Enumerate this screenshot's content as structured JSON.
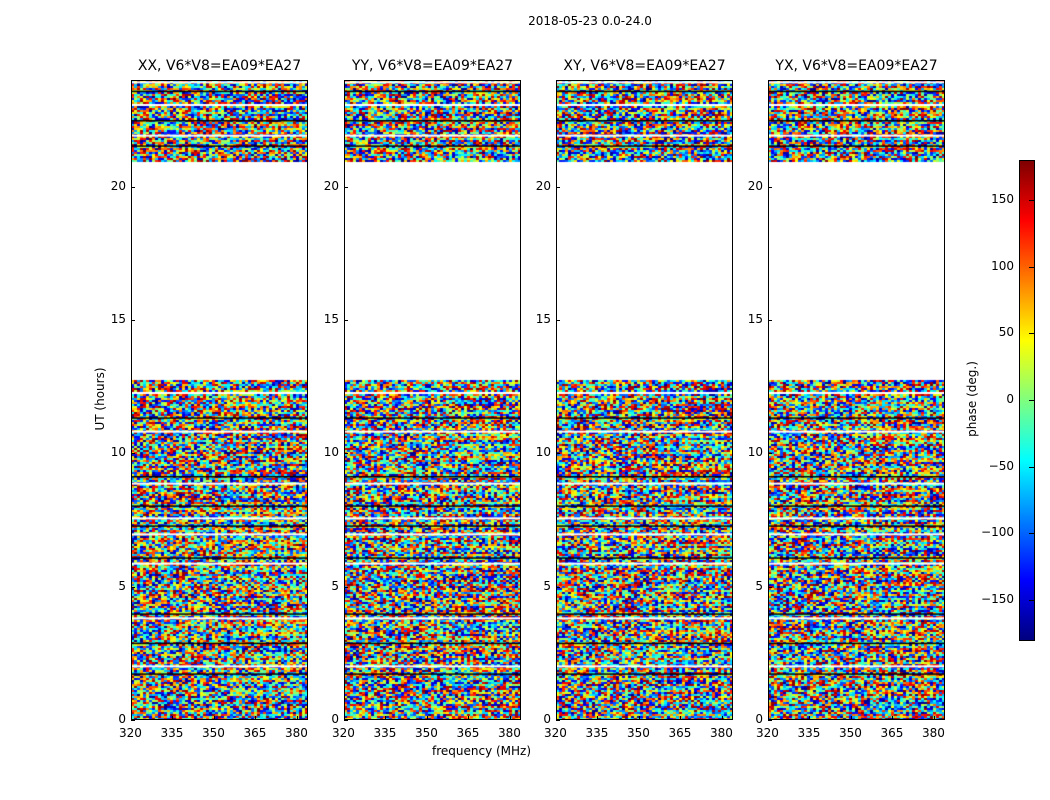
{
  "chart_data": {
    "type": "heatmap",
    "title": "2018-05-23 0.0-24.0",
    "xlabel": "frequency (MHz)",
    "ylabel": "UT (hours)",
    "xlim": [
      320,
      384
    ],
    "ylim": [
      0,
      24
    ],
    "xticks": [
      "320",
      "335",
      "350",
      "365",
      "380"
    ],
    "xtick_values": [
      320,
      335,
      350,
      365,
      380
    ],
    "yticks": [
      "0",
      "5",
      "10",
      "15",
      "20"
    ],
    "ytick_values": [
      0,
      5,
      10,
      15,
      20
    ],
    "data_ranges_hours": [
      [
        0,
        12.8
      ],
      [
        21,
        24
      ]
    ],
    "flagged_rows_hours": [
      1.75,
      2.05,
      2.9,
      3.85,
      4.0,
      5.9,
      6.1,
      7.0,
      7.3,
      7.6,
      8.05,
      8.9,
      9.15,
      10.85,
      11.35,
      12.3,
      21.55,
      21.95,
      22.5,
      23.1,
      23.6,
      23.95
    ],
    "value_description": "visibility phase, noise-like across channels",
    "panels": [
      {
        "title": "XX, V6*V8=EA09*EA27"
      },
      {
        "title": "YY, V6*V8=EA09*EA27"
      },
      {
        "title": "XY, V6*V8=EA09*EA27"
      },
      {
        "title": "YX, V6*V8=EA09*EA27"
      }
    ],
    "colorbar": {
      "label": "phase (deg.)",
      "range": [
        -180,
        180
      ],
      "ticks": [
        "150",
        "100",
        "50",
        "0",
        "−50",
        "−100",
        "−150"
      ],
      "tick_values": [
        150,
        100,
        50,
        0,
        -50,
        -100,
        -150
      ],
      "colormap": "jet"
    }
  }
}
